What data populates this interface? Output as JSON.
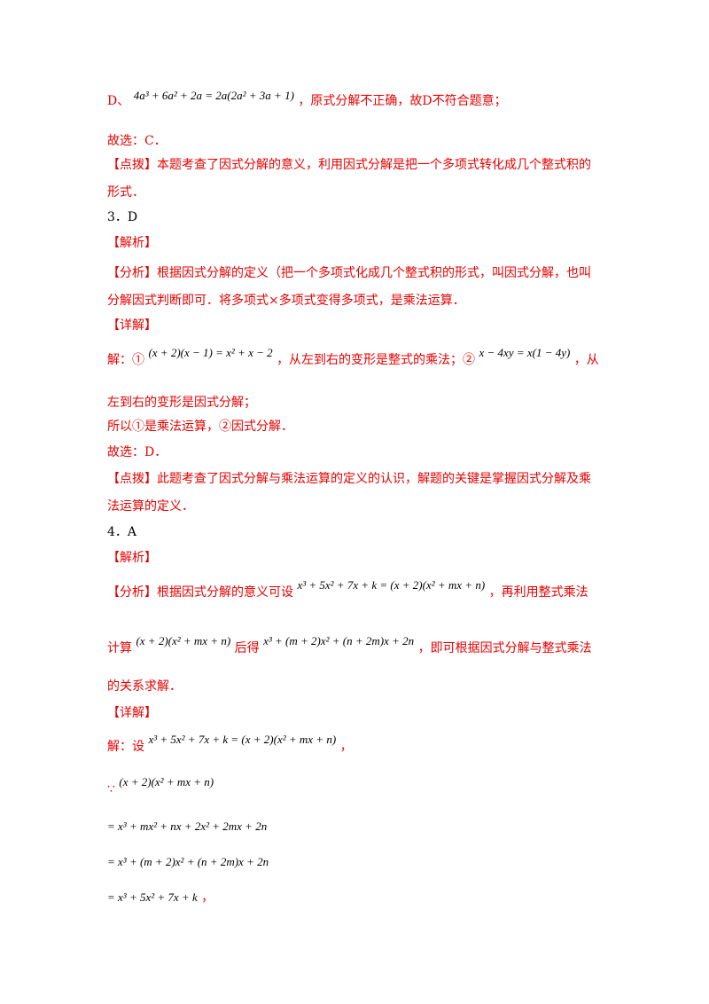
{
  "lines": [
    {
      "pre": "D、",
      "math": "4a³ + 6a² + 2a = 2a(2a² + 3a + 1)",
      "post": "，原式分解不正确，故D不符合题意；",
      "color": "red"
    },
    {
      "text": "故选：C．",
      "color": "red"
    },
    {
      "text": "【点拨】本题考查了因式分解的意义，利用因式分解是把一个多项式转化成几个整式积的",
      "color": "red"
    },
    {
      "text": "形式．",
      "color": "red"
    },
    {
      "text": "3．D",
      "color": "black"
    },
    {
      "text": "【解析】",
      "color": "red"
    },
    {
      "text": "【分析】根据因式分解的定义（把一个多项式化成几个整式积的形式，叫因式分解，也叫",
      "color": "red"
    },
    {
      "text": "分解因式判断即可．将多项式×多项式变得多项式，是乘法运算．",
      "color": "red"
    },
    {
      "text": "【详解】",
      "color": "red"
    },
    {
      "pre": "解：①",
      "math": "(x + 2)(x − 1) = x² + x − 2",
      "mid": "，从左到右的变形是整式的乘法；②",
      "math2": "x − 4xy = x(1 − 4y)",
      "post": "，从",
      "color": "red"
    },
    {
      "text": "左到右的变形是因式分解；",
      "color": "red"
    },
    {
      "text": "所以①是乘法运算，②因式分解．",
      "color": "red"
    },
    {
      "text": "故选：D．",
      "color": "red"
    },
    {
      "text": "【点拨】此题考查了因式分解与乘法运算的定义的认识，解题的关键是掌握因式分解及乘",
      "color": "red"
    },
    {
      "text": "法运算的定义．",
      "color": "red"
    },
    {
      "text": "4．A",
      "color": "black"
    },
    {
      "text": "【解析】",
      "color": "red"
    },
    {
      "pre": "【分析】根据因式分解的意义可设",
      "math": "x³ + 5x² + 7x + k = (x + 2)(x² + mx + n)",
      "post": "，再利用整式乘法",
      "color": "red"
    },
    {
      "pre": "计算",
      "math": "(x + 2)(x² + mx + n)",
      "mid": "后得",
      "math2": "x³ + (m + 2)x² + (n + 2m)x + 2n",
      "post": "，即可根据因式分解与整式乘法",
      "color": "red"
    },
    {
      "text": "的关系求解．",
      "color": "red"
    },
    {
      "text": "【详解】",
      "color": "red"
    },
    {
      "pre": "解：设",
      "math": "x³ + 5x² + 7x + k = (x + 2)(x² + mx + n)",
      "post": "，",
      "color": "red"
    },
    {
      "pre": "∵",
      "math": "(x + 2)(x² + mx + n)",
      "color": "red"
    },
    {
      "math": "= x³ + mx² + nx + 2x² + 2mx + 2n",
      "color": "black"
    },
    {
      "math": "= x³ + (m + 2)x² + (n + 2m)x + 2n",
      "color": "black"
    },
    {
      "math": "= x³ + 5x² + 7x + k",
      "post": "，",
      "color": "red"
    }
  ]
}
